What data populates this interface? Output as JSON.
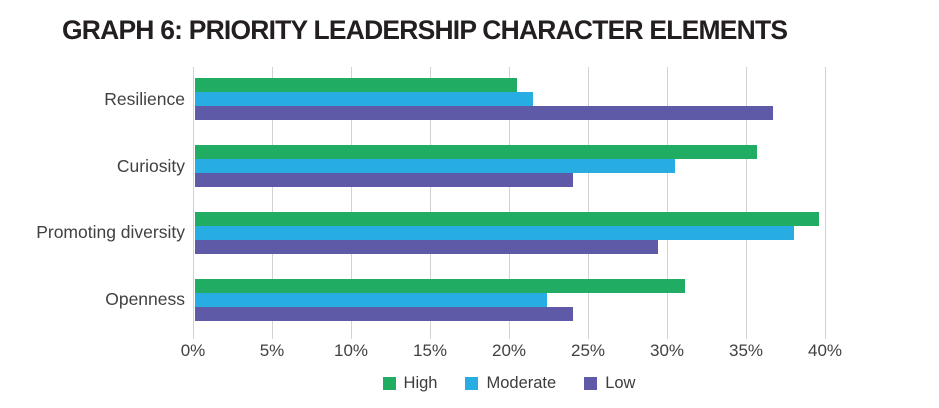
{
  "chart_data": {
    "type": "bar",
    "orientation": "horizontal",
    "title": "GRAPH 6: PRIORITY LEADERSHIP CHARACTER ELEMENTS",
    "categories": [
      "Resilience",
      "Curiosity",
      "Promoting diversity",
      "Openness"
    ],
    "series": [
      {
        "name": "High",
        "color": "#21AC64",
        "values": [
          20.4,
          35.6,
          39.5,
          31.0
        ]
      },
      {
        "name": "Moderate",
        "color": "#28ADE3",
        "values": [
          21.4,
          30.4,
          37.9,
          22.3
        ]
      },
      {
        "name": "Low",
        "color": "#5E5AA7",
        "values": [
          36.6,
          23.9,
          29.3,
          23.9
        ]
      }
    ],
    "x_axis": {
      "min": 0,
      "max": 40,
      "tick_step": 5,
      "tick_labels": [
        "0%",
        "5%",
        "10%",
        "15%",
        "20%",
        "25%",
        "30%",
        "35%",
        "40%"
      ],
      "unit": "%"
    },
    "grid": "vertical",
    "gridline_color": "#d2d2d2",
    "legend_position": "bottom"
  }
}
